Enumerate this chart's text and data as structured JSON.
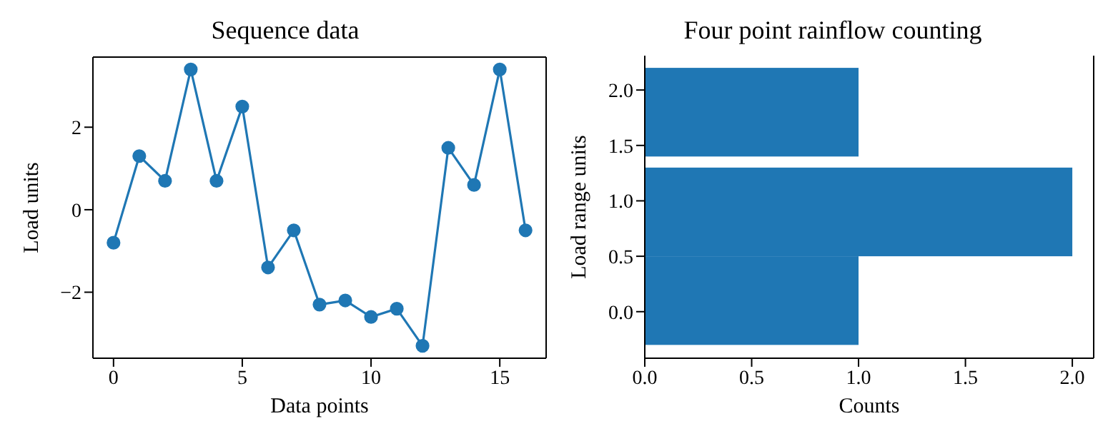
{
  "chart_data": [
    {
      "type": "line",
      "title": "Sequence data",
      "xlabel": "Data points",
      "ylabel": "Load units",
      "x": [
        0,
        1,
        2,
        3,
        4,
        5,
        6,
        7,
        8,
        9,
        10,
        11,
        12,
        13,
        14,
        15,
        16
      ],
      "series": [
        {
          "color": "#1f77b4",
          "values": [
            -0.8,
            1.3,
            0.7,
            3.4,
            0.7,
            2.5,
            -1.4,
            -0.5,
            -2.3,
            -2.2,
            -2.6,
            -2.4,
            -3.3,
            1.5,
            0.6,
            3.4,
            -0.5
          ]
        }
      ],
      "xlim": [
        -0.8,
        16.8
      ],
      "xticks": [
        0,
        5,
        10,
        15
      ],
      "ylim": [
        -3.6,
        3.7
      ],
      "yticks": [
        {
          "value": -2,
          "label": "−2"
        },
        0,
        2
      ],
      "marker": "circle",
      "line_style": "solid",
      "grid": false,
      "legend": false
    },
    {
      "type": "histogram",
      "orientation": "horizontal",
      "title": "Four point rainflow counting",
      "xlabel": "Counts",
      "ylabel": "Load range units",
      "bins": [
        -0.3,
        0.5,
        1.3,
        1.4,
        2.2
      ],
      "values": [
        1,
        2,
        0,
        1
      ],
      "color": "#1f77b4",
      "xlim": [
        0,
        2.1
      ],
      "xticks": [
        {
          "value": 0,
          "label": "0.0"
        },
        {
          "value": 0.5,
          "label": "0.5"
        },
        {
          "value": 1,
          "label": "1.0"
        },
        {
          "value": 1.5,
          "label": "1.5"
        },
        {
          "value": 2,
          "label": "2.0"
        }
      ],
      "ylim": [
        -0.42,
        2.31
      ],
      "yticks": [
        {
          "value": 0,
          "label": "0.0"
        },
        {
          "value": 0.5,
          "label": "0.5"
        },
        {
          "value": 1,
          "label": "1.0"
        },
        {
          "value": 1.5,
          "label": "1.5"
        },
        {
          "value": 2,
          "label": "2.0"
        }
      ],
      "grid": false,
      "legend": false
    }
  ]
}
